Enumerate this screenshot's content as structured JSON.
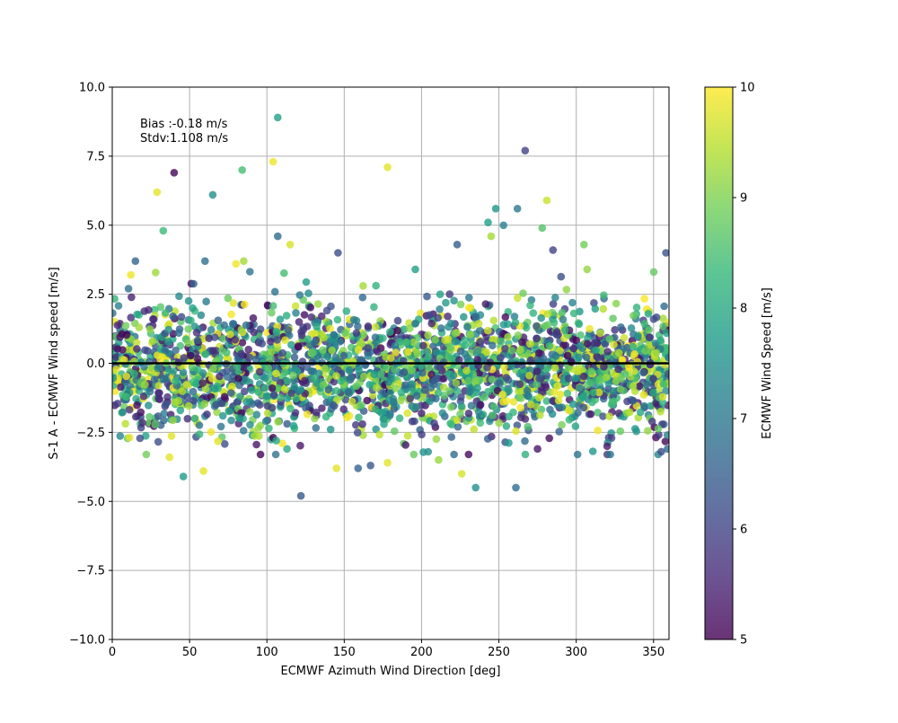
{
  "chart_data": {
    "type": "scatter",
    "xlabel": "ECMWF Azimuth Wind Direction [deg]",
    "ylabel": "S-1 A - ECMWF Wind speed [m/s]",
    "xlim": [
      0,
      360
    ],
    "ylim": [
      -10,
      10
    ],
    "xticks": [
      0,
      50,
      100,
      150,
      200,
      250,
      300,
      350
    ],
    "xtick_labels": [
      "0",
      "50",
      "100",
      "150",
      "200",
      "250",
      "300",
      "350"
    ],
    "yticks": [
      -10,
      -7.5,
      -5,
      -2.5,
      0,
      2.5,
      5,
      7.5,
      10
    ],
    "ytick_labels": [
      "−10.0",
      "−7.5",
      "−5.0",
      "−2.5",
      "0.0",
      "2.5",
      "5.0",
      "7.5",
      "10.0"
    ],
    "grid": true,
    "zero_line": 0,
    "annotations": [
      {
        "text": "Bias :-0.18 m/s",
        "x": 18,
        "y": 8.5
      },
      {
        "text": "Stdv:1.108 m/s",
        "x": 18,
        "y": 8.0
      }
    ],
    "colorbar": {
      "label": "ECMWF Wind Speed [m/s]",
      "range": [
        5,
        10
      ],
      "ticks": [
        5,
        6,
        7,
        8,
        9,
        10
      ],
      "tick_labels": [
        "5",
        "6",
        "7",
        "8",
        "9",
        "10"
      ],
      "colormap": "viridis",
      "colors": [
        "#440154",
        "#482878",
        "#3e4989",
        "#31688e",
        "#26828e",
        "#1f9e89",
        "#35b779",
        "#6ece58",
        "#b5de2b",
        "#fde725"
      ]
    },
    "marker_alpha": 0.8,
    "bias": -0.18,
    "stdv": 1.108,
    "outliers": [
      {
        "x": 107,
        "y": 8.9,
        "c": 7.8
      },
      {
        "x": 40,
        "y": 6.9,
        "c": 5.1
      },
      {
        "x": 104,
        "y": 7.3,
        "c": 9.9
      },
      {
        "x": 84,
        "y": 7.0,
        "c": 8.5
      },
      {
        "x": 178,
        "y": 7.1,
        "c": 9.8
      },
      {
        "x": 267,
        "y": 7.7,
        "c": 6.0
      },
      {
        "x": 29,
        "y": 6.2,
        "c": 9.8
      },
      {
        "x": 65,
        "y": 6.1,
        "c": 7.5
      },
      {
        "x": 281,
        "y": 5.9,
        "c": 9.6
      },
      {
        "x": 33,
        "y": 4.8,
        "c": 8.4
      },
      {
        "x": 107,
        "y": 4.6,
        "c": 6.7
      },
      {
        "x": 115,
        "y": 4.3,
        "c": 9.7
      },
      {
        "x": 248,
        "y": 5.6,
        "c": 7.6
      },
      {
        "x": 253,
        "y": 5.0,
        "c": 7.2
      },
      {
        "x": 262,
        "y": 5.6,
        "c": 7.0
      },
      {
        "x": 243,
        "y": 5.1,
        "c": 7.8
      },
      {
        "x": 278,
        "y": 4.9,
        "c": 8.6
      },
      {
        "x": 305,
        "y": 4.3,
        "c": 8.9
      },
      {
        "x": 245,
        "y": 4.6,
        "c": 9.3
      },
      {
        "x": 146,
        "y": 4.0,
        "c": 6.2
      },
      {
        "x": 223,
        "y": 4.3,
        "c": 6.5
      },
      {
        "x": 358,
        "y": 4.0,
        "c": 6.3
      },
      {
        "x": 285,
        "y": 4.1,
        "c": 6.0
      },
      {
        "x": 60,
        "y": 3.7,
        "c": 6.8
      },
      {
        "x": 15,
        "y": 3.7,
        "c": 6.6
      },
      {
        "x": 80,
        "y": 3.6,
        "c": 9.9
      },
      {
        "x": 85,
        "y": 3.7,
        "c": 9.3
      },
      {
        "x": 12,
        "y": 3.2,
        "c": 9.9
      },
      {
        "x": 122,
        "y": -4.8,
        "c": 6.4
      },
      {
        "x": 46,
        "y": -4.1,
        "c": 7.7
      },
      {
        "x": 235,
        "y": -4.5,
        "c": 7.5
      },
      {
        "x": 261,
        "y": -4.5,
        "c": 6.8
      },
      {
        "x": 59,
        "y": -3.9,
        "c": 9.8
      },
      {
        "x": 145,
        "y": -3.8,
        "c": 9.8
      },
      {
        "x": 159,
        "y": -3.8,
        "c": 6.6
      },
      {
        "x": 167,
        "y": -3.7,
        "c": 6.4
      },
      {
        "x": 226,
        "y": -4.0,
        "c": 9.7
      },
      {
        "x": 37,
        "y": -3.4,
        "c": 9.8
      },
      {
        "x": 211,
        "y": -3.5,
        "c": 9.2
      },
      {
        "x": 178,
        "y": -3.6,
        "c": 9.8
      },
      {
        "x": 322,
        "y": -3.3,
        "c": 6.9
      },
      {
        "x": 353,
        "y": -3.3,
        "c": 7.3
      },
      {
        "x": 355,
        "y": -3.2,
        "c": 6.2
      },
      {
        "x": 359,
        "y": -3.1,
        "c": 6.7
      },
      {
        "x": 320,
        "y": -3.0,
        "c": 5.4
      },
      {
        "x": 275,
        "y": -3.1,
        "c": 5.3
      },
      {
        "x": 113,
        "y": -3.1,
        "c": 8.0
      },
      {
        "x": 195,
        "y": -3.3,
        "c": 8.8
      },
      {
        "x": 22,
        "y": -3.3,
        "c": 8.9
      },
      {
        "x": 110,
        "y": -2.9,
        "c": 9.9
      },
      {
        "x": 106,
        "y": -2.8,
        "c": 8.0
      }
    ],
    "bulk": {
      "count": 2600,
      "x_range": [
        0,
        360
      ],
      "y_center": -0.18,
      "y_stdv": 1.108,
      "c_range": [
        5,
        10
      ]
    }
  }
}
